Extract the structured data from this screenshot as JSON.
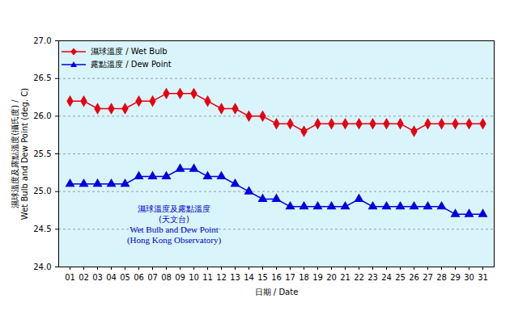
{
  "chart_data": {
    "type": "line",
    "xlabel": "日期 / Date",
    "ylabel": "濕球溫度及露點溫度(攝氏度) / Wet Bulb and Dew Point (deg. C)",
    "annotations": [
      "濕球溫度及露點溫度",
      "(天文台)",
      "Wet Bulb and Dew Point",
      "(Hong Kong Observatory)"
    ],
    "categories": [
      "01",
      "02",
      "03",
      "04",
      "05",
      "06",
      "07",
      "08",
      "09",
      "10",
      "11",
      "12",
      "13",
      "14",
      "15",
      "16",
      "17",
      "18",
      "19",
      "20",
      "21",
      "22",
      "23",
      "24",
      "25",
      "26",
      "27",
      "28",
      "29",
      "30",
      "31"
    ],
    "series": [
      {
        "name": "濕球溫度 / Wet Bulb",
        "color": "#e60012",
        "marker": "diamond",
        "values": [
          26.2,
          26.2,
          26.1,
          26.1,
          26.1,
          26.2,
          26.2,
          26.3,
          26.3,
          26.3,
          26.2,
          26.1,
          26.1,
          26.0,
          26.0,
          25.9,
          25.9,
          25.8,
          25.9,
          25.9,
          25.9,
          25.9,
          25.9,
          25.9,
          25.9,
          25.8,
          25.9,
          25.9,
          25.9,
          25.9,
          25.9
        ]
      },
      {
        "name": "露點溫度 / Dew Point",
        "color": "#0000e0",
        "marker": "triangle",
        "values": [
          25.1,
          25.1,
          25.1,
          25.1,
          25.1,
          25.2,
          25.2,
          25.2,
          25.3,
          25.3,
          25.2,
          25.2,
          25.1,
          25.0,
          24.9,
          24.9,
          24.8,
          24.8,
          24.8,
          24.8,
          24.8,
          24.9,
          24.8,
          24.8,
          24.8,
          24.8,
          24.8,
          24.8,
          24.7,
          24.7,
          24.7
        ]
      }
    ],
    "ylim": [
      24.0,
      27.0
    ],
    "yticks": [
      {
        "value": 24.0,
        "label": "24.0"
      },
      24.5,
      {
        "value": 25.0,
        "label": "25.0"
      },
      25.5,
      {
        "value": 26.0,
        "label": "26.0"
      },
      26.5,
      {
        "value": 27.0,
        "label": "27.0"
      }
    ],
    "grid": true,
    "legend": "top-left"
  }
}
